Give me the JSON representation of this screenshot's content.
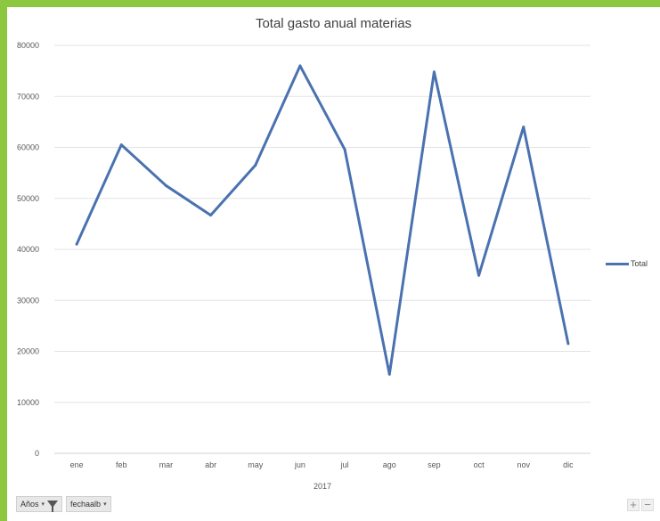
{
  "chart_data": {
    "type": "line",
    "title": "Total gasto anual materias",
    "categories": [
      "ene",
      "feb",
      "mar",
      "abr",
      "may",
      "jun",
      "jul",
      "ago",
      "sep",
      "oct",
      "nov",
      "dic"
    ],
    "category_group": "2017",
    "series": [
      {
        "name": "Total",
        "color": "#4a72b0",
        "values": [
          41000,
          60500,
          52500,
          46700,
          56500,
          76000,
          59600,
          15500,
          74800,
          34900,
          64000,
          21500
        ]
      }
    ],
    "ylim": [
      0,
      80000
    ],
    "yticks": [
      0,
      10000,
      20000,
      30000,
      40000,
      50000,
      60000,
      70000,
      80000
    ],
    "grid": true,
    "legend_position": "right"
  },
  "field_buttons": {
    "years_label": "Años",
    "years_caret": "▾",
    "date_field_label": "fechaalb",
    "date_field_caret": "▾"
  },
  "zoom": {
    "plus": "+",
    "minus": "−"
  }
}
